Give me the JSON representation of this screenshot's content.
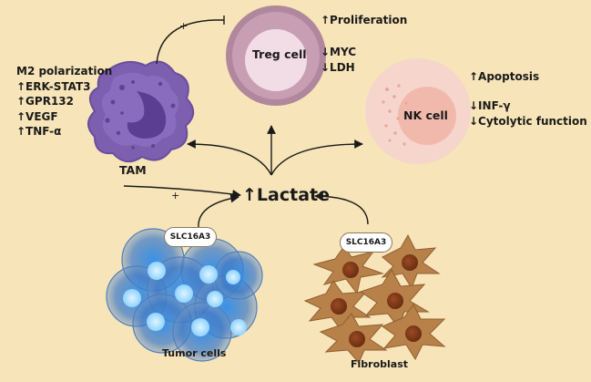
{
  "cells": {
    "treg": {
      "label": "Treg cell",
      "effects": [
        "↑Proliferation",
        "↓MYC",
        "↓LDH"
      ]
    },
    "nk": {
      "label": "NK cell",
      "effects": [
        "↑Apoptosis",
        "↓INF-γ",
        "↓Cytolytic function"
      ]
    },
    "tam": {
      "label": "TAM",
      "effects": [
        "M2 polarization",
        "↑ERK-STAT3",
        "↑GPR132",
        "↑VEGF",
        "↑TNF-α"
      ]
    },
    "tumor": {
      "label": "Tumor cells",
      "transporter": "SLC16A3"
    },
    "fibroblast": {
      "label": "Fibroblast",
      "transporter": "SLC16A3"
    }
  },
  "lactate": {
    "label": "↑Lactate"
  },
  "signs": {
    "tam_to_treg": "+",
    "tam_to_lactate": "+"
  },
  "colors": {
    "background": "#f7e4b8",
    "tam": "#7d5fb0",
    "treg_outer": "#b0879c",
    "treg_inner": "#f2dde6",
    "nk_outer": "#f6d6cc",
    "nk_inner": "#f0b9ab",
    "tumor": "#2f7ad6",
    "fibroblast": "#b8814a"
  }
}
